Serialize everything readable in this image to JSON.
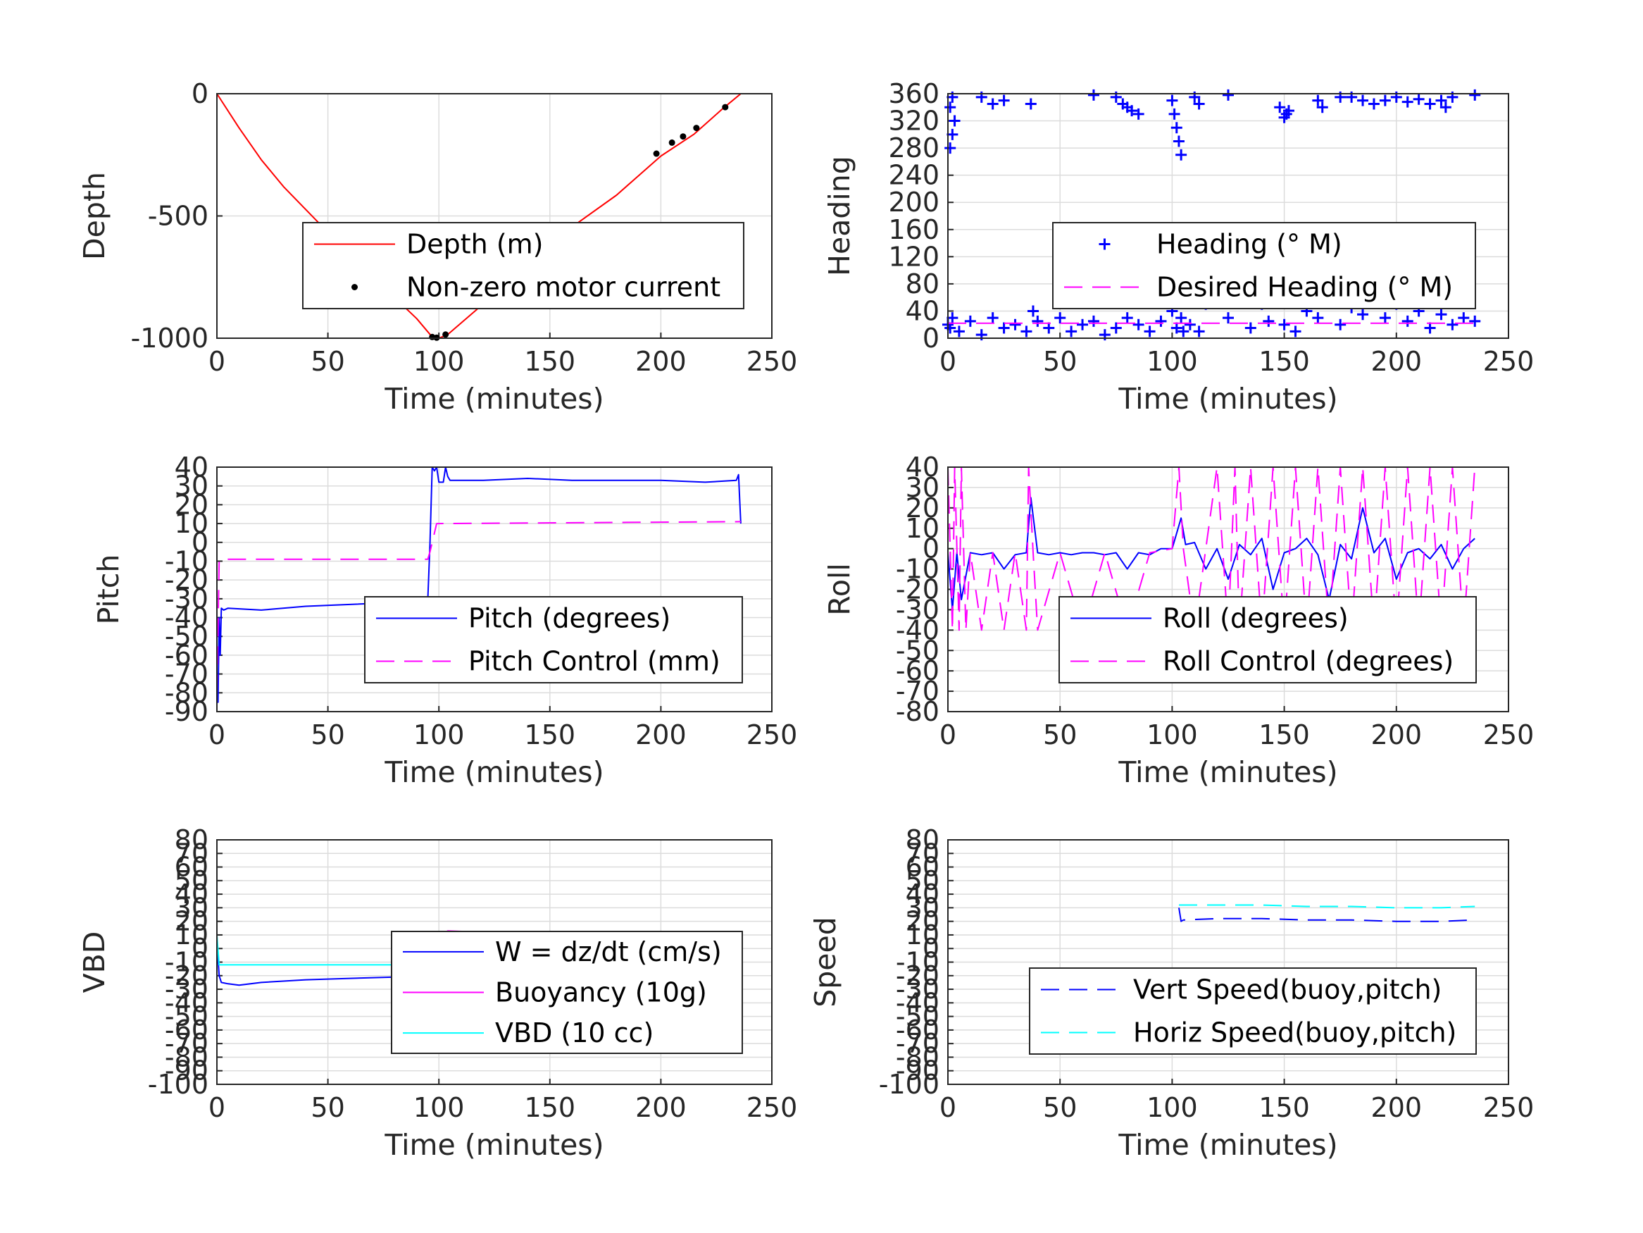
{
  "chart_data": [
    {
      "id": "depth",
      "type": "line",
      "ylabel": "Depth",
      "xlabel": "Time (minutes)",
      "xlim": [
        0,
        250
      ],
      "ylim": [
        -1000,
        0
      ],
      "xticks": [
        0,
        50,
        100,
        150,
        200,
        250
      ],
      "yticks": [
        -1000,
        -500,
        0
      ],
      "grid": true,
      "legend_position": "center-right",
      "series": [
        {
          "name": "Depth (m)",
          "color": "#ff0000",
          "style": "solid",
          "x": [
            0,
            10,
            20,
            30,
            45,
            60,
            75,
            90,
            97,
            100,
            104,
            120,
            140,
            160,
            180,
            200,
            215,
            228,
            236
          ],
          "y": [
            0,
            -140,
            -270,
            -380,
            -520,
            -660,
            -790,
            -920,
            -995,
            -1000,
            -985,
            -860,
            -700,
            -545,
            -415,
            -255,
            -165,
            -60,
            0
          ]
        },
        {
          "name": "Non-zero motor current",
          "color": "#000000",
          "style": "marker-dot",
          "x": [
            97,
            99,
            103,
            198,
            205,
            210,
            216,
            229
          ],
          "y": [
            -995,
            -998,
            -985,
            -245,
            -200,
            -175,
            -140,
            -55
          ]
        }
      ]
    },
    {
      "id": "heading",
      "type": "scatter",
      "ylabel": "Heading",
      "xlabel": "Time (minutes)",
      "xlim": [
        0,
        250
      ],
      "ylim": [
        0,
        360
      ],
      "xticks": [
        0,
        50,
        100,
        150,
        200,
        250
      ],
      "yticks": [
        0,
        40,
        80,
        120,
        160,
        200,
        240,
        280,
        320,
        360
      ],
      "grid": true,
      "legend_position": "center-right",
      "series": [
        {
          "name": "Heading (° M)",
          "color": "#0000ff",
          "style": "marker-plus",
          "x": [
            0,
            1,
            2,
            1,
            2,
            3,
            1,
            2,
            5,
            10,
            15,
            20,
            25,
            30,
            35,
            38,
            40,
            45,
            50,
            55,
            60,
            65,
            70,
            75,
            80,
            85,
            90,
            95,
            100,
            102,
            104,
            105,
            106,
            108,
            110,
            112,
            115,
            118,
            120,
            122,
            125,
            130,
            135,
            138,
            140,
            143,
            145,
            150,
            155,
            160,
            165,
            170,
            175,
            180,
            185,
            190,
            195,
            200,
            205,
            210,
            215,
            220,
            225,
            230,
            235,
            15,
            20,
            25,
            37,
            65,
            75,
            78,
            80,
            82,
            85,
            100,
            101,
            102,
            103,
            104,
            110,
            112,
            125,
            148,
            150,
            151,
            152,
            165,
            167,
            175,
            180,
            185,
            190,
            195,
            200,
            205,
            210,
            215,
            220,
            222,
            225,
            235
          ],
          "y": [
            20,
            15,
            30,
            280,
            300,
            320,
            340,
            355,
            10,
            25,
            5,
            30,
            15,
            20,
            10,
            40,
            25,
            15,
            30,
            10,
            20,
            25,
            5,
            15,
            30,
            20,
            10,
            25,
            40,
            15,
            30,
            10,
            60,
            20,
            80,
            10,
            50,
            100,
            120,
            90,
            30,
            60,
            15,
            80,
            50,
            25,
            70,
            20,
            10,
            40,
            30,
            60,
            20,
            45,
            35,
            60,
            30,
            50,
            25,
            40,
            15,
            35,
            20,
            30,
            25,
            355,
            345,
            350,
            345,
            358,
            355,
            345,
            340,
            335,
            330,
            350,
            330,
            310,
            290,
            270,
            355,
            345,
            358,
            340,
            325,
            330,
            335,
            350,
            340,
            355,
            355,
            350,
            345,
            350,
            355,
            348,
            352,
            345,
            350,
            340,
            355,
            358
          ]
        },
        {
          "name": "Desired Heading (° M)",
          "color": "#ff00ff",
          "style": "dashed",
          "x": [
            0,
            236
          ],
          "y": [
            22,
            22
          ]
        }
      ]
    },
    {
      "id": "pitch",
      "type": "line",
      "ylabel": "Pitch",
      "xlabel": "Time (minutes)",
      "xlim": [
        0,
        250
      ],
      "ylim": [
        -90,
        40
      ],
      "xticks": [
        0,
        50,
        100,
        150,
        200,
        250
      ],
      "yticks": [
        -90,
        -80,
        -70,
        -60,
        -50,
        -40,
        -30,
        -20,
        -10,
        0,
        10,
        20,
        30,
        40
      ],
      "grid": true,
      "legend_position": "center-right",
      "series": [
        {
          "name": "Pitch (degrees)",
          "color": "#0000ff",
          "style": "solid",
          "x": [
            0,
            0.5,
            1,
            1.5,
            2,
            3,
            5,
            20,
            40,
            60,
            80,
            95,
            96,
            97,
            98,
            99,
            100,
            102,
            103,
            104,
            105,
            120,
            140,
            160,
            180,
            200,
            220,
            234,
            235,
            236
          ],
          "y": [
            -80,
            -85,
            -40,
            -60,
            -35,
            -36,
            -35,
            -36,
            -34,
            -33,
            -32,
            -31,
            0,
            40,
            38,
            40,
            32,
            32,
            40,
            35,
            33,
            33,
            34,
            33,
            33,
            33,
            32,
            33,
            36,
            10
          ]
        },
        {
          "name": "Pitch Control (mm)",
          "color": "#ff00ff",
          "style": "dashed",
          "x": [
            0,
            1,
            2,
            95,
            96,
            98,
            99,
            100,
            236
          ],
          "y": [
            -80,
            -10,
            -9,
            -9,
            -5,
            5,
            10,
            10,
            11
          ]
        }
      ]
    },
    {
      "id": "roll",
      "type": "line",
      "ylabel": "Roll",
      "xlabel": "Time (minutes)",
      "xlim": [
        0,
        250
      ],
      "ylim": [
        -80,
        40
      ],
      "xticks": [
        0,
        50,
        100,
        150,
        200,
        250
      ],
      "yticks": [
        -80,
        -70,
        -60,
        -50,
        -40,
        -30,
        -20,
        -10,
        0,
        10,
        20,
        30,
        40
      ],
      "grid": true,
      "legend_position": "center-right",
      "series": [
        {
          "name": "Roll (degrees)",
          "color": "#0000ff",
          "style": "solid",
          "x": [
            0,
            2,
            4,
            6,
            10,
            15,
            20,
            25,
            30,
            35,
            37,
            40,
            45,
            50,
            55,
            60,
            65,
            70,
            75,
            80,
            85,
            90,
            95,
            100,
            104,
            106,
            110,
            115,
            120,
            125,
            130,
            135,
            140,
            145,
            150,
            155,
            160,
            165,
            170,
            175,
            180,
            185,
            190,
            195,
            200,
            205,
            210,
            215,
            220,
            225,
            230,
            235
          ],
          "y": [
            -2,
            -30,
            -2,
            -25,
            -2,
            -3,
            -2,
            -10,
            -3,
            -2,
            25,
            -2,
            -3,
            -2,
            -3,
            -2,
            -2,
            -3,
            -2,
            -10,
            -2,
            -3,
            0,
            0,
            15,
            2,
            3,
            -10,
            0,
            -15,
            2,
            -3,
            5,
            -20,
            -2,
            0,
            5,
            -3,
            -25,
            2,
            -5,
            20,
            -2,
            5,
            -15,
            -2,
            0,
            -5,
            2,
            -10,
            0,
            5
          ]
        },
        {
          "name": "Roll Control (degrees)",
          "color": "#ff00ff",
          "style": "dashed",
          "x": [
            0,
            2,
            3,
            5,
            6,
            8,
            10,
            15,
            20,
            25,
            30,
            35,
            36,
            38,
            40,
            50,
            60,
            70,
            80,
            90,
            100,
            103,
            105,
            110,
            115,
            120,
            125,
            128,
            130,
            135,
            140,
            145,
            150,
            155,
            160,
            165,
            170,
            175,
            180,
            185,
            190,
            195,
            200,
            205,
            210,
            215,
            220,
            225,
            230,
            235
          ],
          "y": [
            40,
            -40,
            40,
            -40,
            40,
            -40,
            -2,
            -40,
            -2,
            -40,
            -2,
            -40,
            40,
            -2,
            -40,
            -2,
            -40,
            -2,
            -40,
            -2,
            0,
            40,
            0,
            -40,
            0,
            40,
            -40,
            40,
            -40,
            40,
            -40,
            40,
            -40,
            40,
            -40,
            40,
            -40,
            40,
            -40,
            40,
            -40,
            40,
            -40,
            40,
            -40,
            40,
            -40,
            40,
            -40,
            40
          ]
        }
      ]
    },
    {
      "id": "vbd",
      "type": "line",
      "ylabel": "VBD",
      "xlabel": "Time (minutes)",
      "xlim": [
        0,
        250
      ],
      "ylim": [
        -100,
        80
      ],
      "xticks": [
        0,
        50,
        100,
        150,
        200,
        250
      ],
      "yticks": [
        -100,
        -90,
        -80,
        -70,
        -60,
        -50,
        -40,
        -30,
        -20,
        -10,
        0,
        10,
        20,
        30,
        40,
        50,
        60,
        70,
        80
      ],
      "yticklabels": [
        "-100",
        "-90",
        "-80",
        "-70",
        "-60",
        "-50",
        "-40",
        "-30",
        "-20",
        "-10",
        "0",
        "10",
        "20",
        "30",
        "40",
        "50",
        "60",
        "70",
        "80"
      ],
      "grid": true,
      "legend_position": "center-right",
      "series": [
        {
          "name": "W = dz/dt (cm/s)",
          "color": "#0000ff",
          "style": "solid",
          "x": [
            0,
            1,
            2,
            5,
            10,
            20,
            40,
            60,
            80,
            95,
            96,
            97,
            100,
            103,
            104,
            106,
            110,
            120,
            140,
            160,
            180,
            200,
            220,
            234,
            236
          ],
          "y": [
            5,
            -20,
            -25,
            -26,
            -27,
            -25,
            -23,
            -22,
            -21,
            -20,
            -10,
            -5,
            -5,
            -4,
            0,
            5,
            6,
            6,
            5,
            5,
            4,
            5,
            4,
            5,
            -3
          ]
        },
        {
          "name": "Buoyancy (10g)",
          "color": "#ff00ff",
          "style": "solid",
          "x": [
            103,
            104,
            120,
            140,
            160,
            180,
            200,
            210,
            220,
            230,
            236
          ],
          "y": [
            12,
            13,
            12,
            12,
            11,
            11,
            10,
            11,
            10,
            11,
            10
          ]
        },
        {
          "name": "VBD (10 cc)",
          "color": "#00ffff",
          "style": "solid",
          "x": [
            0,
            1,
            2,
            95,
            96,
            100,
            103,
            104,
            236
          ],
          "y": [
            10,
            -12,
            -12,
            -12,
            5,
            4,
            5,
            7,
            7
          ]
        }
      ]
    },
    {
      "id": "speed",
      "type": "line",
      "ylabel": "Speed",
      "xlabel": "Time (minutes)",
      "xlim": [
        0,
        250
      ],
      "ylim": [
        -100,
        80
      ],
      "xticks": [
        0,
        50,
        100,
        150,
        200,
        250
      ],
      "yticks": [
        -100,
        -90,
        -80,
        -70,
        -60,
        -50,
        -40,
        -30,
        -20,
        -10,
        0,
        10,
        20,
        30,
        40,
        50,
        60,
        70,
        80
      ],
      "yticklabels": [
        "-100",
        "-90",
        "-80",
        "-70",
        "-60",
        "-50",
        "-40",
        "-30",
        "-20",
        "-10",
        "0",
        "10",
        "20",
        "30",
        "40",
        "50",
        "60",
        "70",
        "80"
      ],
      "grid": true,
      "legend_position": "bottom-right",
      "series": [
        {
          "name": "Vert Speed(buoy,pitch)",
          "color": "#0000ff",
          "style": "dashed",
          "x": [
            103,
            104,
            105,
            120,
            140,
            160,
            180,
            200,
            220,
            235
          ],
          "y": [
            30,
            20,
            21,
            22,
            22,
            21,
            21,
            20,
            20,
            21
          ]
        },
        {
          "name": "Horiz Speed(buoy,pitch)",
          "color": "#00ffff",
          "style": "dashed",
          "x": [
            103,
            120,
            140,
            160,
            180,
            200,
            220,
            235
          ],
          "y": [
            32,
            32,
            32,
            31,
            31,
            30,
            30,
            31
          ]
        }
      ]
    }
  ]
}
